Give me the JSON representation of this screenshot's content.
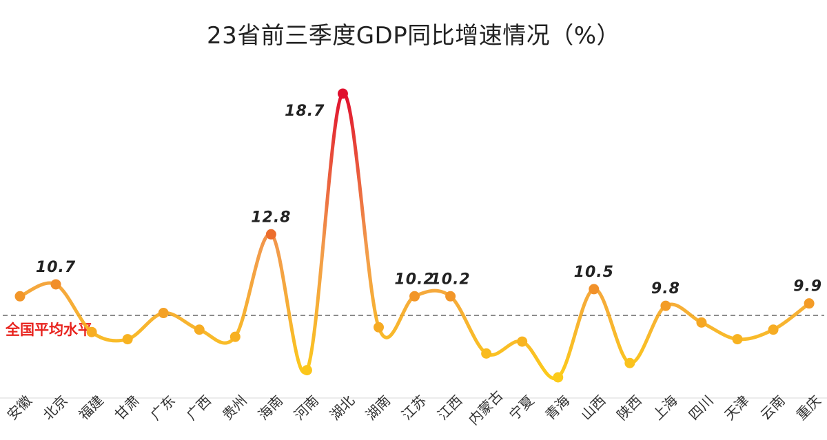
{
  "chart_data": {
    "type": "line",
    "title": "23省前三季度GDP同比增速情况（%）",
    "xlabel": "",
    "ylabel": "",
    "ylim": [
      6,
      19.5
    ],
    "grid": false,
    "legend": "none",
    "smooth": true,
    "categories": [
      "安徽",
      "北京",
      "福建",
      "甘肃",
      "广东",
      "广西",
      "贵州",
      "海南",
      "河南",
      "湖北",
      "湖南",
      "江苏",
      "江西",
      "内蒙古",
      "宁夏",
      "青海",
      "山西",
      "陕西",
      "上海",
      "四川",
      "天津",
      "云南",
      "重庆"
    ],
    "series": [
      {
        "values": [
          10.2,
          10.7,
          8.7,
          8.4,
          9.5,
          8.8,
          8.5,
          12.8,
          7.1,
          18.7,
          8.9,
          10.2,
          10.2,
          7.8,
          8.3,
          6.8,
          10.5,
          7.4,
          9.8,
          9.1,
          8.4,
          8.8,
          9.9
        ],
        "labeled": {
          "1": "10.7",
          "7": "12.8",
          "9": "18.7",
          "11": "10.2",
          "12": "10.2",
          "16": "10.5",
          "18": "9.8",
          "22": "9.9"
        }
      }
    ],
    "reference_line": {
      "value": 9.4,
      "label": "全国平均水平",
      "color": "#e8231e",
      "style": "dashed"
    },
    "color_scale": {
      "low": "#fccb1a",
      "mid": "#f08a2c",
      "high": "#e0102e"
    }
  }
}
